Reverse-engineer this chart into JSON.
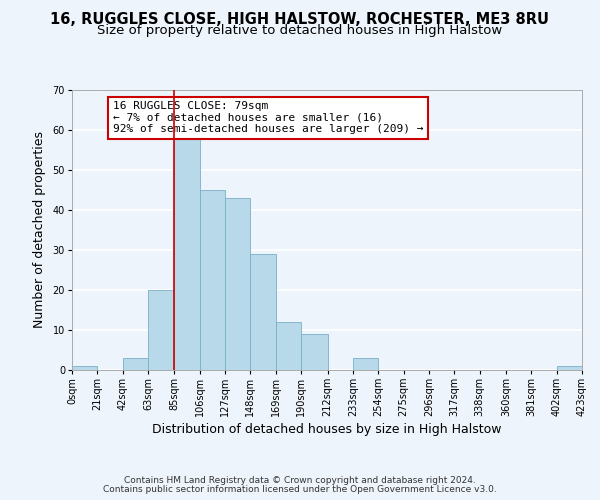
{
  "title": "16, RUGGLES CLOSE, HIGH HALSTOW, ROCHESTER, ME3 8RU",
  "subtitle": "Size of property relative to detached houses in High Halstow",
  "xlabel": "Distribution of detached houses by size in High Halstow",
  "ylabel": "Number of detached properties",
  "footer_line1": "Contains HM Land Registry data © Crown copyright and database right 2024.",
  "footer_line2": "Contains public sector information licensed under the Open Government Licence v3.0.",
  "annotation_title": "16 RUGGLES CLOSE: 79sqm",
  "annotation_line2": "← 7% of detached houses are smaller (16)",
  "annotation_line3": "92% of semi-detached houses are larger (209) →",
  "bar_edges": [
    0,
    21,
    42,
    63,
    85,
    106,
    127,
    148,
    169,
    190,
    212,
    233,
    254,
    275,
    296,
    317,
    338,
    360,
    381,
    402,
    423
  ],
  "bar_heights": [
    1,
    0,
    3,
    20,
    58,
    45,
    43,
    29,
    12,
    9,
    0,
    3,
    0,
    0,
    0,
    0,
    0,
    0,
    0,
    1
  ],
  "tick_labels": [
    "0sqm",
    "21sqm",
    "42sqm",
    "63sqm",
    "85sqm",
    "106sqm",
    "127sqm",
    "148sqm",
    "169sqm",
    "190sqm",
    "212sqm",
    "233sqm",
    "254sqm",
    "275sqm",
    "296sqm",
    "317sqm",
    "338sqm",
    "360sqm",
    "381sqm",
    "402sqm",
    "423sqm"
  ],
  "bar_color": "#b8d9ea",
  "bar_edge_color": "#7aafc8",
  "property_line_x": 85,
  "ylim": [
    0,
    70
  ],
  "yticks": [
    0,
    10,
    20,
    30,
    40,
    50,
    60,
    70
  ],
  "bg_color": "#eef4fb",
  "grid_color": "#ffffff",
  "annotation_box_color": "#ffffff",
  "annotation_box_edge": "#cc0000",
  "property_line_color": "#cc0000",
  "title_fontsize": 10.5,
  "subtitle_fontsize": 9.5,
  "axis_label_fontsize": 9,
  "tick_fontsize": 7,
  "annotation_fontsize": 8,
  "footer_fontsize": 6.5
}
